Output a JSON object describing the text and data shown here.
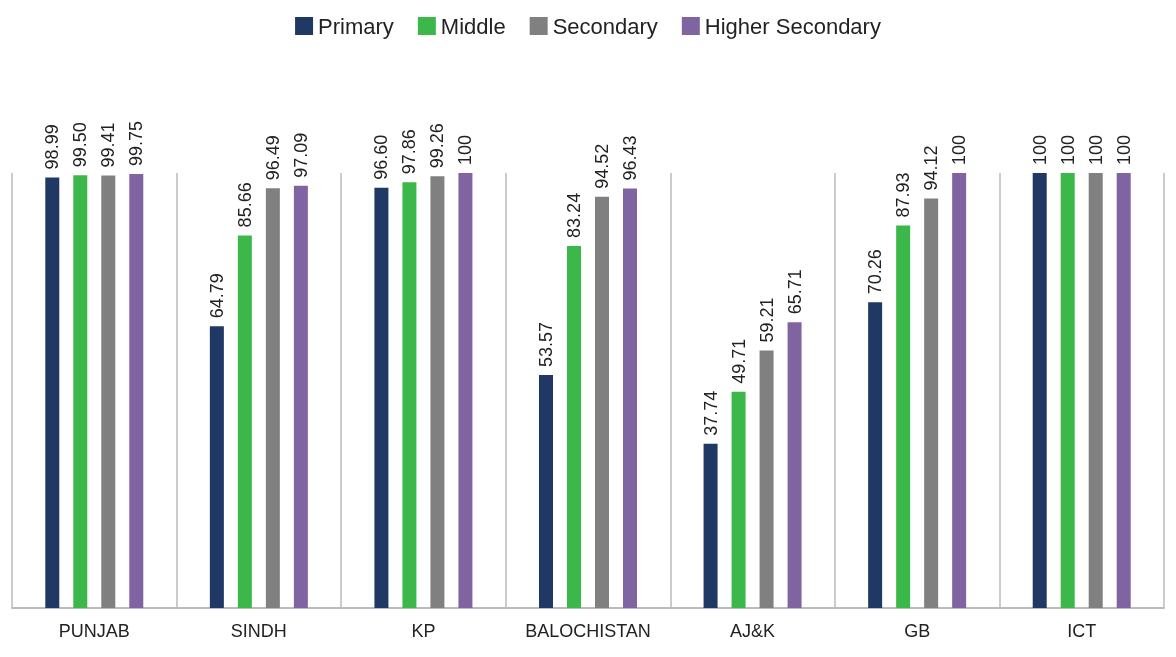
{
  "chart_data": {
    "type": "bar",
    "categories": [
      "PUNJAB",
      "SINDH",
      "KP",
      "BALOCHISTAN",
      "AJ&K",
      "GB",
      "ICT"
    ],
    "series": [
      {
        "name": "Primary",
        "color": "#1f3864",
        "values": [
          98.99,
          64.79,
          96.6,
          53.57,
          37.74,
          70.26,
          100
        ],
        "value_labels": [
          "98.99",
          "64.79",
          "96.60",
          "53.57",
          "37.74",
          "70.26",
          "100"
        ]
      },
      {
        "name": "Middle",
        "color": "#3cb84a",
        "values": [
          99.5,
          85.66,
          97.86,
          83.24,
          49.71,
          87.93,
          100
        ],
        "value_labels": [
          "99.50",
          "85.66",
          "97.86",
          "83.24",
          "49.71",
          "87.93",
          "100"
        ]
      },
      {
        "name": "Secondary",
        "color": "#808080",
        "values": [
          99.41,
          96.49,
          99.26,
          94.52,
          59.21,
          94.12,
          100
        ],
        "value_labels": [
          "99.41",
          "96.49",
          "99.26",
          "94.52",
          "59.21",
          "94.12",
          "100"
        ]
      },
      {
        "name": "Higher Secondary",
        "color": "#8064a2",
        "values": [
          99.75,
          97.09,
          100,
          96.43,
          65.71,
          100,
          100
        ],
        "value_labels": [
          "99.75",
          "97.09",
          "100",
          "96.43",
          "65.71",
          "100",
          "100"
        ]
      }
    ],
    "grid": "x",
    "legend": "top"
  }
}
